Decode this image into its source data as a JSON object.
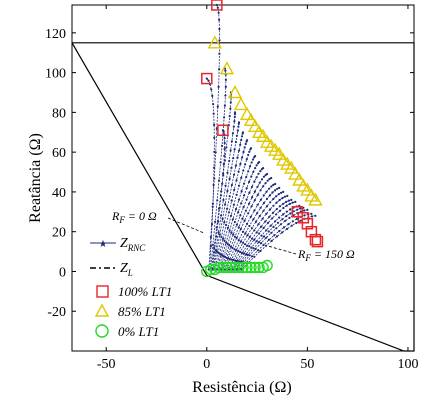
{
  "chart_data": {
    "type": "scatter",
    "xlabel": "Resistência (Ω)",
    "ylabel": "Reatância (Ω)",
    "xlim": [
      -67,
      103
    ],
    "ylim": [
      -40,
      134
    ],
    "x_ticks": [
      -50,
      0,
      50,
      100
    ],
    "y_ticks": [
      -20,
      0,
      20,
      40,
      60,
      80,
      100,
      120
    ],
    "x_tick_labels": [
      "-50",
      "0",
      "50",
      "100"
    ],
    "y_tick_labels": [
      "-20",
      "0",
      "20",
      "40",
      "60",
      "80",
      "100",
      "120"
    ],
    "grid": false,
    "legend_position": "bottom-left",
    "legend": [
      {
        "label_main": "Z",
        "label_sub": "RNC",
        "marker": "star-line",
        "color": "#1f2a7a"
      },
      {
        "label_main": "Z",
        "label_sub": "L",
        "marker": "dash-dot",
        "color": "#000000"
      },
      {
        "label": "100% LT1",
        "marker": "square",
        "color": "#e8262a"
      },
      {
        "label": "85% LT1",
        "marker": "triangle",
        "color": "#e0c800"
      },
      {
        "label": "0% LT1",
        "marker": "circle",
        "color": "#26d926"
      }
    ],
    "annotations": [
      {
        "label_main": "R",
        "label_sub": "F",
        "label_rest": " = 0 Ω",
        "points_to": [
          1,
          20
        ]
      },
      {
        "label_main": "R",
        "label_sub": "F",
        "label_rest": " = 150 Ω",
        "points_to": [
          28,
          10
        ]
      }
    ],
    "zone_boundary": [
      [
        -67,
        115
      ],
      [
        103,
        115
      ],
      [
        103,
        -40
      ],
      [
        98,
        -40
      ],
      [
        0,
        -2
      ],
      [
        -67,
        115
      ]
    ],
    "arc_start": [
      [
        5,
        134
      ],
      [
        0,
        97
      ],
      [
        9,
        102
      ],
      [
        12,
        90
      ],
      [
        8,
        71
      ],
      [
        14,
        80
      ],
      [
        16,
        75
      ],
      [
        18,
        70
      ],
      [
        20,
        66
      ],
      [
        22,
        62
      ],
      [
        24,
        58
      ],
      [
        26,
        55
      ],
      [
        28,
        52
      ],
      [
        30,
        49
      ],
      [
        32,
        47
      ],
      [
        34,
        44
      ],
      [
        36,
        42
      ],
      [
        38,
        40
      ],
      [
        40,
        38
      ],
      [
        42,
        36
      ],
      [
        44,
        35
      ],
      [
        46,
        33
      ],
      [
        48,
        32
      ],
      [
        50,
        31
      ],
      [
        52,
        29
      ],
      [
        54,
        28
      ]
    ],
    "arc_end_x": [
      1.0,
      1.4,
      1.8,
      2.2,
      2.6,
      3.0,
      3.4,
      4.0,
      4.6,
      5.2,
      5.8,
      6.4,
      7.0,
      7.6,
      8.2,
      9.0,
      9.8,
      10.6,
      11.4,
      12.2,
      13.0,
      13.8,
      14.6,
      15.4,
      16.4,
      17.4
    ],
    "series": [
      {
        "name": "100% LT1",
        "marker": "square",
        "color": "#e8262a",
        "points": [
          [
            5,
            134
          ],
          [
            0,
            97
          ],
          [
            8,
            71
          ],
          [
            45,
            30
          ],
          [
            48,
            27
          ],
          [
            50,
            24
          ],
          [
            52,
            20
          ],
          [
            54,
            16
          ],
          [
            55,
            15
          ]
        ]
      },
      {
        "name": "85% LT1",
        "marker": "triangle",
        "color": "#e0c800",
        "points": [
          [
            4,
            115
          ],
          [
            10,
            102
          ],
          [
            14,
            90
          ],
          [
            17,
            84
          ],
          [
            20,
            79
          ],
          [
            22,
            76
          ],
          [
            24,
            73
          ],
          [
            26,
            70
          ],
          [
            28,
            68
          ],
          [
            30,
            65
          ],
          [
            32,
            63
          ],
          [
            34,
            61
          ],
          [
            36,
            59
          ],
          [
            38,
            56
          ],
          [
            40,
            54
          ],
          [
            42,
            52
          ],
          [
            44,
            49
          ],
          [
            46,
            46
          ],
          [
            48,
            43
          ],
          [
            50,
            41
          ],
          [
            52,
            38
          ],
          [
            54,
            36
          ]
        ]
      },
      {
        "name": "0% LT1",
        "marker": "circle",
        "color": "#26d926",
        "points": [
          [
            0,
            0
          ],
          [
            2,
            1
          ],
          [
            4,
            1
          ],
          [
            6,
            2
          ],
          [
            8,
            2
          ],
          [
            10,
            2
          ],
          [
            12,
            2
          ],
          [
            14,
            2
          ],
          [
            16,
            2
          ],
          [
            18,
            2
          ],
          [
            20,
            2
          ],
          [
            22,
            2
          ],
          [
            24,
            2
          ],
          [
            26,
            2
          ],
          [
            28,
            2
          ],
          [
            30,
            3
          ]
        ]
      }
    ]
  }
}
